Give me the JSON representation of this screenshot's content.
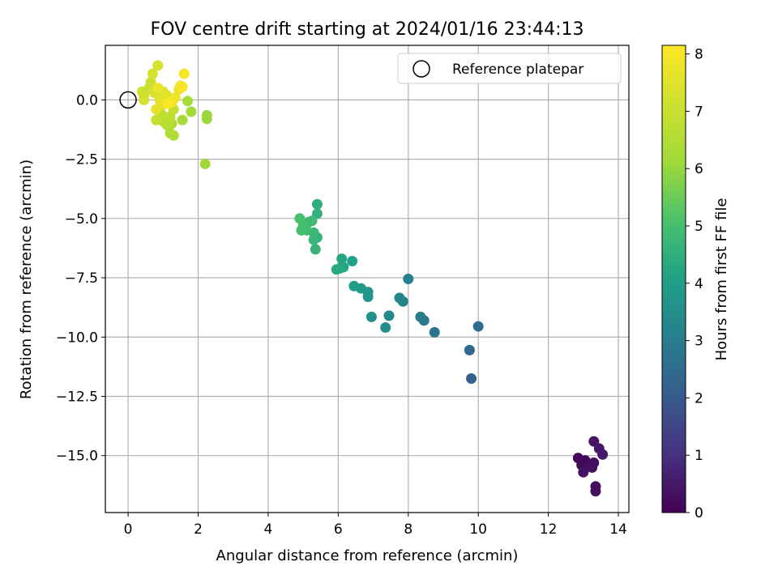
{
  "chart_data": {
    "type": "scatter",
    "title": "FOV centre drift starting at 2024/01/16 23:44:13",
    "xlabel": "Angular distance from reference (arcmin)",
    "ylabel": "Rotation from reference (arcmin)",
    "xlim": [
      -0.65,
      14.3
    ],
    "ylim": [
      -17.4,
      2.3
    ],
    "xticks": [
      0,
      2,
      4,
      6,
      8,
      10,
      12,
      14
    ],
    "xtick_labels": [
      "0",
      "2",
      "4",
      "6",
      "8",
      "10",
      "12",
      "14"
    ],
    "yticks": [
      0.0,
      -2.5,
      -5.0,
      -7.5,
      -10.0,
      -12.5,
      -15.0
    ],
    "ytick_labels": [
      "0.0",
      "−2.5",
      "−5.0",
      "−7.5",
      "−10.0",
      "−12.5",
      "−15.0"
    ],
    "grid": true,
    "colormap": "viridis",
    "colorbar": {
      "label": "Hours from first FF file",
      "range": [
        0,
        8.15
      ],
      "ticks": [
        0,
        1,
        2,
        3,
        4,
        5,
        6,
        7,
        8
      ],
      "tick_labels": [
        "0",
        "1",
        "2",
        "3",
        "4",
        "5",
        "6",
        "7",
        "8"
      ]
    },
    "legend": {
      "position": "top-right",
      "entries": [
        "Reference platepar"
      ]
    },
    "reference_point": {
      "x": 0,
      "y": 0
    },
    "points": [
      {
        "x": 12.85,
        "y": -15.1,
        "c": 0.1
      },
      {
        "x": 13.05,
        "y": -15.2,
        "c": 0.15
      },
      {
        "x": 12.95,
        "y": -15.4,
        "c": 0.2
      },
      {
        "x": 13.3,
        "y": -15.3,
        "c": 0.25
      },
      {
        "x": 13.25,
        "y": -15.5,
        "c": 0.3
      },
      {
        "x": 13.0,
        "y": -15.7,
        "c": 0.35
      },
      {
        "x": 13.3,
        "y": -14.4,
        "c": 0.4
      },
      {
        "x": 13.45,
        "y": -14.7,
        "c": 0.45
      },
      {
        "x": 13.55,
        "y": -14.95,
        "c": 0.5
      },
      {
        "x": 13.35,
        "y": -16.3,
        "c": 0.3
      },
      {
        "x": 13.35,
        "y": -16.5,
        "c": 0.25
      },
      {
        "x": 13.2,
        "y": -15.45,
        "c": 0.35
      },
      {
        "x": 9.8,
        "y": -11.75,
        "c": 2.2
      },
      {
        "x": 9.75,
        "y": -10.55,
        "c": 2.4
      },
      {
        "x": 10.0,
        "y": -9.55,
        "c": 2.5
      },
      {
        "x": 8.75,
        "y": -9.8,
        "c": 2.8
      },
      {
        "x": 8.45,
        "y": -9.3,
        "c": 2.9
      },
      {
        "x": 8.35,
        "y": -9.15,
        "c": 3.0
      },
      {
        "x": 8.0,
        "y": -7.55,
        "c": 3.1
      },
      {
        "x": 7.85,
        "y": -8.5,
        "c": 3.2
      },
      {
        "x": 7.75,
        "y": -8.35,
        "c": 3.3
      },
      {
        "x": 7.45,
        "y": -9.1,
        "c": 3.4
      },
      {
        "x": 7.35,
        "y": -9.6,
        "c": 3.5
      },
      {
        "x": 6.95,
        "y": -9.15,
        "c": 3.6
      },
      {
        "x": 6.85,
        "y": -8.3,
        "c": 3.7
      },
      {
        "x": 6.85,
        "y": -8.1,
        "c": 3.8
      },
      {
        "x": 6.65,
        "y": -7.95,
        "c": 3.9
      },
      {
        "x": 6.45,
        "y": -7.85,
        "c": 4.0
      },
      {
        "x": 6.4,
        "y": -6.8,
        "c": 4.1
      },
      {
        "x": 6.15,
        "y": -7.05,
        "c": 4.2
      },
      {
        "x": 6.1,
        "y": -6.7,
        "c": 4.25
      },
      {
        "x": 6.05,
        "y": -7.1,
        "c": 4.3
      },
      {
        "x": 5.95,
        "y": -7.15,
        "c": 4.35
      },
      {
        "x": 5.4,
        "y": -4.4,
        "c": 4.5
      },
      {
        "x": 5.4,
        "y": -4.8,
        "c": 4.55
      },
      {
        "x": 5.4,
        "y": -5.8,
        "c": 4.6
      },
      {
        "x": 5.35,
        "y": -6.3,
        "c": 4.65
      },
      {
        "x": 5.3,
        "y": -5.9,
        "c": 4.7
      },
      {
        "x": 5.3,
        "y": -5.6,
        "c": 4.75
      },
      {
        "x": 5.25,
        "y": -5.1,
        "c": 4.8
      },
      {
        "x": 5.15,
        "y": -5.15,
        "c": 4.85
      },
      {
        "x": 5.1,
        "y": -5.5,
        "c": 4.9
      },
      {
        "x": 5.0,
        "y": -5.3,
        "c": 4.95
      },
      {
        "x": 4.95,
        "y": -5.5,
        "c": 5.0
      },
      {
        "x": 4.9,
        "y": -5.0,
        "c": 5.05
      },
      {
        "x": 2.25,
        "y": -0.65,
        "c": 6.0
      },
      {
        "x": 2.25,
        "y": -0.8,
        "c": 6.05
      },
      {
        "x": 2.2,
        "y": -2.7,
        "c": 6.1
      },
      {
        "x": 1.8,
        "y": -0.5,
        "c": 6.2
      },
      {
        "x": 1.7,
        "y": -0.05,
        "c": 6.25
      },
      {
        "x": 1.55,
        "y": -0.85,
        "c": 6.3
      },
      {
        "x": 1.3,
        "y": -1.5,
        "c": 6.4
      },
      {
        "x": 1.2,
        "y": -1.4,
        "c": 6.45
      },
      {
        "x": 1.25,
        "y": -1.0,
        "c": 6.5
      },
      {
        "x": 1.1,
        "y": -1.05,
        "c": 6.6
      },
      {
        "x": 1.0,
        "y": -0.9,
        "c": 6.7
      },
      {
        "x": 1.2,
        "y": -0.7,
        "c": 6.75
      },
      {
        "x": 0.95,
        "y": -0.6,
        "c": 6.8
      },
      {
        "x": 0.8,
        "y": -0.85,
        "c": 6.9
      },
      {
        "x": 1.3,
        "y": -0.4,
        "c": 6.95
      },
      {
        "x": 0.65,
        "y": 0.75,
        "c": 7.0
      },
      {
        "x": 0.6,
        "y": 0.5,
        "c": 7.05
      },
      {
        "x": 0.45,
        "y": 0.2,
        "c": 7.1
      },
      {
        "x": 0.4,
        "y": 0.35,
        "c": 7.15
      },
      {
        "x": 0.45,
        "y": 0.0,
        "c": 7.2
      },
      {
        "x": 0.7,
        "y": 1.1,
        "c": 7.25
      },
      {
        "x": 0.85,
        "y": 1.45,
        "c": 7.3
      },
      {
        "x": 0.75,
        "y": 0.3,
        "c": 7.4
      },
      {
        "x": 1.0,
        "y": 0.35,
        "c": 7.45
      },
      {
        "x": 1.1,
        "y": 0.2,
        "c": 7.5
      },
      {
        "x": 0.9,
        "y": 0.0,
        "c": 7.55
      },
      {
        "x": 0.8,
        "y": -0.4,
        "c": 7.6
      },
      {
        "x": 1.0,
        "y": -0.2,
        "c": 7.65
      },
      {
        "x": 1.25,
        "y": -0.1,
        "c": 7.7
      },
      {
        "x": 0.85,
        "y": 0.5,
        "c": 7.75
      },
      {
        "x": 1.35,
        "y": 0.1,
        "c": 7.8
      },
      {
        "x": 1.45,
        "y": 0.45,
        "c": 7.85
      },
      {
        "x": 1.5,
        "y": 0.6,
        "c": 7.9
      },
      {
        "x": 1.55,
        "y": 0.55,
        "c": 7.95
      },
      {
        "x": 1.6,
        "y": 1.1,
        "c": 8.05
      },
      {
        "x": 1.15,
        "y": -0.15,
        "c": 8.1
      }
    ]
  }
}
